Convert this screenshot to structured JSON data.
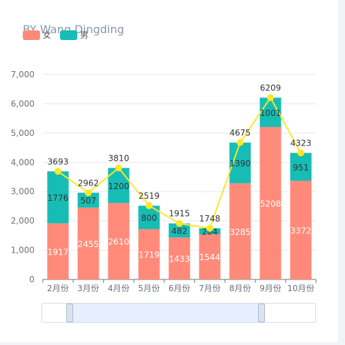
{
  "title": "BY Wang Dingding",
  "colors": {
    "female": "#ff8a7a",
    "male": "#16bdb5",
    "line": "#fde626",
    "axis_text": "#6e7079",
    "grid": "#e6e8ee",
    "title_text": "#8a96a8"
  },
  "legend": [
    {
      "name": "女",
      "color": "#ff8a7a"
    },
    {
      "name": "男",
      "color": "#16bdb5"
    }
  ],
  "zoom": {
    "start": 0.1,
    "end": 0.8
  },
  "chart_data": {
    "type": "bar",
    "stacked": true,
    "categories": [
      "2月份",
      "3月份",
      "4月份",
      "5月份",
      "6月份",
      "7月份",
      "8月份",
      "9月份",
      "10月份"
    ],
    "series": [
      {
        "name": "女",
        "type": "bar",
        "values": [
          1917,
          2455,
          2610,
          1719,
          1433,
          1544,
          3285,
          5208,
          3372
        ]
      },
      {
        "name": "男",
        "type": "bar",
        "values": [
          1776,
          507,
          1200,
          800,
          482,
          204,
          1390,
          1001,
          951
        ]
      },
      {
        "type": "line",
        "values": [
          3693,
          2962,
          3810,
          2519,
          1915,
          1748,
          4675,
          6209,
          4323
        ]
      }
    ],
    "y_ticks": [
      "0",
      "1,000",
      "2,000",
      "3,000",
      "4,000",
      "5,000",
      "6,000",
      "7,000"
    ],
    "ylim": [
      0,
      7000
    ],
    "grid": true,
    "legend_position": "top-left",
    "title": "BY Wang Dingding"
  }
}
